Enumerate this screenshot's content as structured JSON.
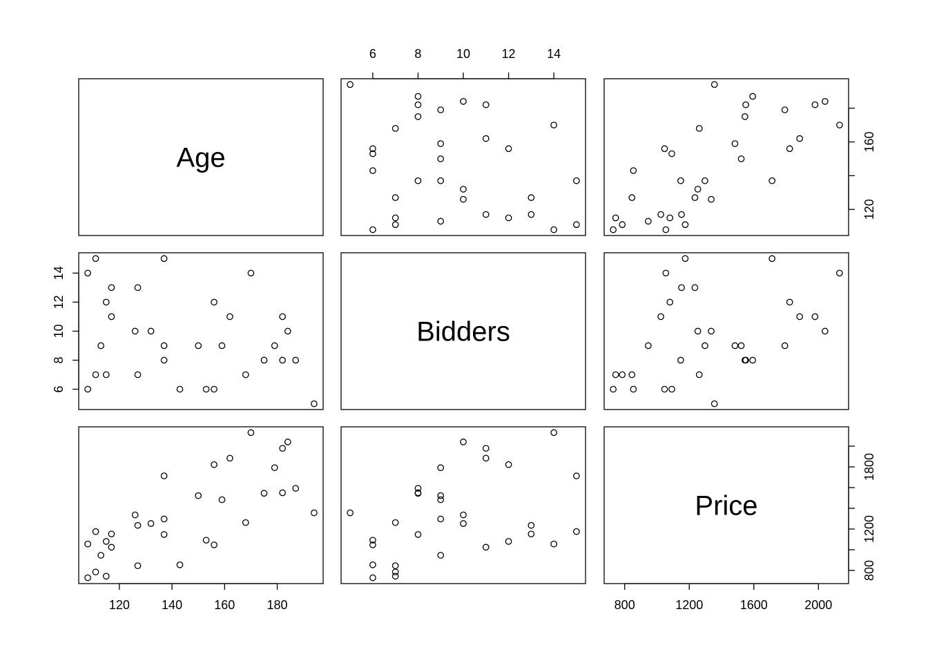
{
  "chart_data": {
    "type": "scatter-matrix",
    "variables": [
      {
        "name": "Age",
        "values": [
          127,
          115,
          127,
          150,
          156,
          182,
          156,
          132,
          137,
          113,
          137,
          117,
          137,
          153,
          117,
          126,
          170,
          182,
          162,
          184,
          143,
          159,
          108,
          175,
          108,
          179,
          111,
          187,
          111,
          115,
          194,
          168
        ],
        "lim": [
          104.56,
          197.44
        ],
        "xticks": [
          120,
          140,
          160,
          180
        ],
        "yticks": [
          120,
          {
            "value": 140,
            "label": null
          },
          160,
          {
            "value": 180,
            "label": null
          }
        ]
      },
      {
        "name": "Bidders",
        "values": [
          13,
          12,
          7,
          9,
          6,
          11,
          12,
          10,
          9,
          9,
          15,
          11,
          8,
          6,
          13,
          10,
          14,
          8,
          11,
          10,
          6,
          9,
          14,
          8,
          6,
          9,
          15,
          8,
          7,
          7,
          5,
          7
        ],
        "lim": [
          4.6,
          15.4
        ],
        "xticks": [
          6,
          8,
          10,
          12,
          14
        ],
        "yticks": [
          6,
          8,
          10,
          12,
          14
        ]
      },
      {
        "name": "Price",
        "values": [
          1235,
          1080,
          845,
          1522,
          1047,
          1979,
          1822,
          1253,
          1297,
          946,
          1713,
          1024,
          1147,
          1092,
          1152,
          1336,
          2131,
          1550,
          1884,
          2041,
          854,
          1483,
          1055,
          1545,
          729,
          1792,
          1175,
          1593,
          785,
          744,
          1356,
          1262
        ],
        "lim": [
          672.92,
          2187.08
        ],
        "xticks": [
          800,
          1200,
          1600,
          2000
        ],
        "yticks": [
          800,
          {
            "value": 1000,
            "label": null
          },
          1200,
          {
            "value": 1400,
            "label": null
          },
          {
            "value": 1600,
            "label": null
          },
          1800,
          {
            "value": 2000,
            "label": null
          }
        ]
      }
    ]
  }
}
